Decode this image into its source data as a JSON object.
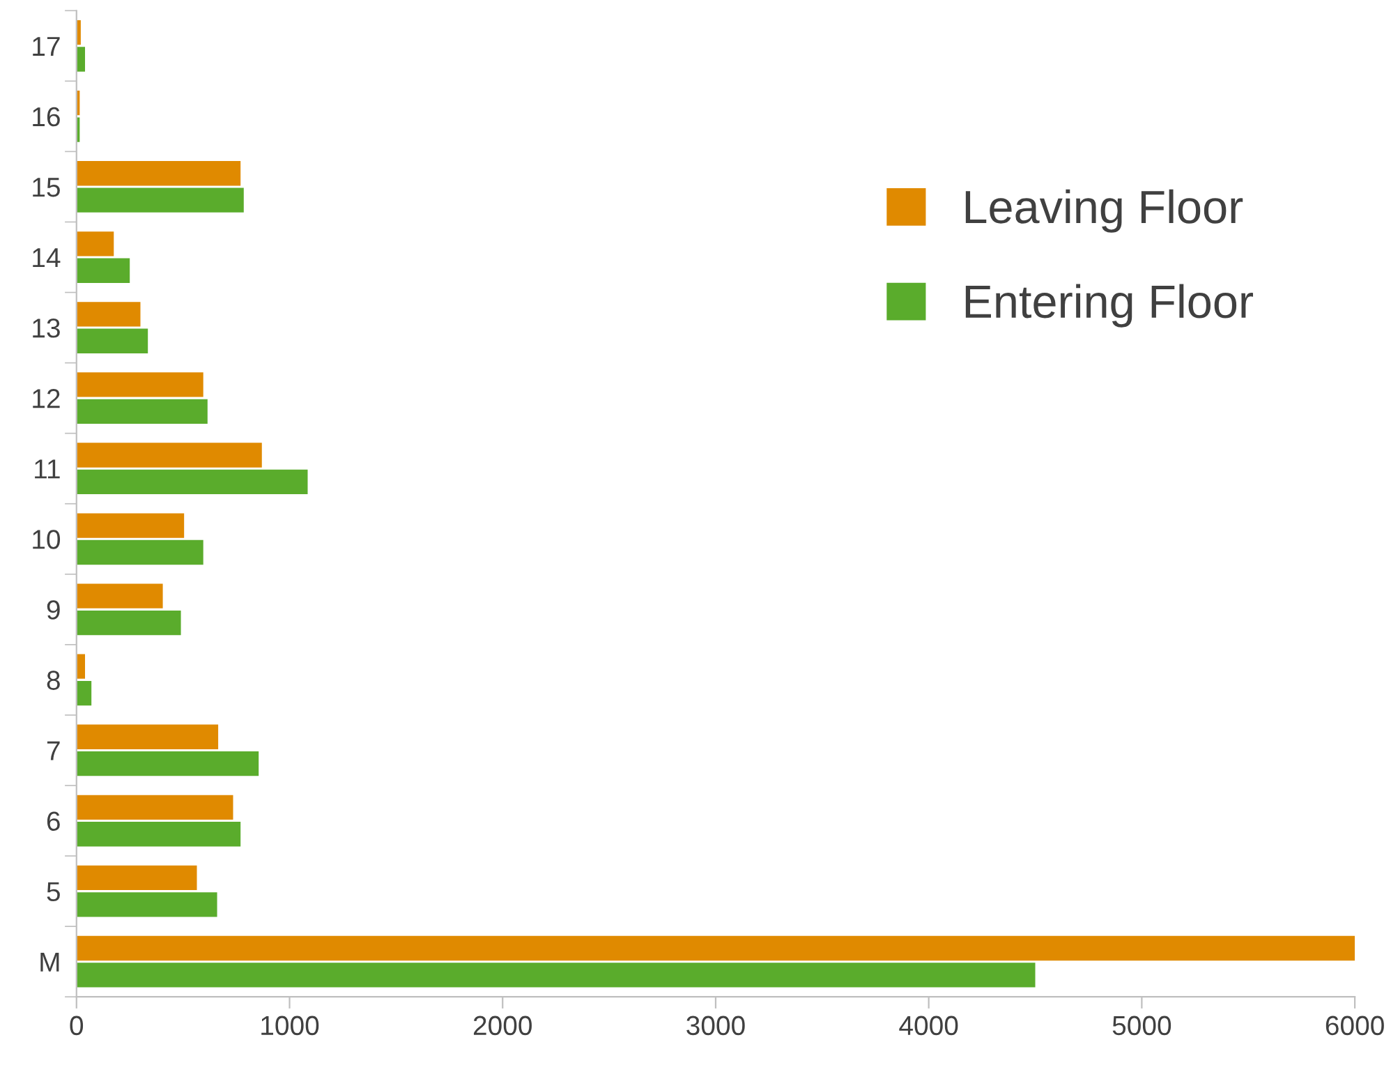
{
  "chart_data": {
    "type": "bar",
    "orientation": "horizontal",
    "categories": [
      "17",
      "16",
      "15",
      "14",
      "13",
      "12",
      "11",
      "10",
      "9",
      "8",
      "7",
      "6",
      "5",
      "M"
    ],
    "series": [
      {
        "name": "Leaving Floor",
        "color": "#e08a00",
        "values": [
          20,
          15,
          770,
          175,
          300,
          595,
          870,
          505,
          405,
          40,
          665,
          735,
          565,
          6000
        ]
      },
      {
        "name": "Entering Floor",
        "color": "#5aac2c",
        "values": [
          40,
          15,
          785,
          250,
          335,
          615,
          1085,
          595,
          490,
          70,
          855,
          770,
          660,
          4500
        ]
      }
    ],
    "xlim": [
      0,
      6000
    ],
    "xticks": [
      0,
      1000,
      2000,
      3000,
      4000,
      5000,
      6000
    ],
    "grid": false,
    "legend": "top right"
  }
}
